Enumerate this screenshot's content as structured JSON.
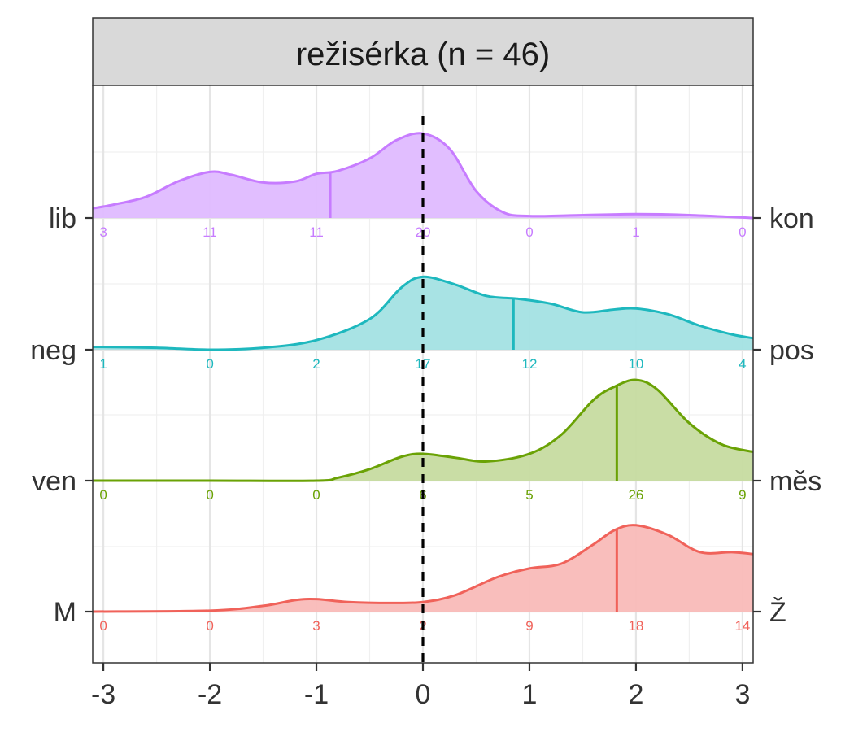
{
  "chart_data": {
    "type": "ridgeline-density",
    "panel_title": "režisérka (n = 46)",
    "x_ticks": [
      -3,
      -2,
      -1,
      0,
      1,
      2,
      3
    ],
    "x_range": [
      -3.1,
      3.1
    ],
    "reference_line_x": 0,
    "rows": [
      {
        "left_label": "lib",
        "right_label": "kon",
        "color": "#C77CFF",
        "fill": "#DFBAFF",
        "mean": -0.87,
        "counts": [
          3,
          11,
          11,
          20,
          0,
          1,
          0
        ],
        "density_x": [
          -3.1,
          -2.9,
          -2.6,
          -2.3,
          -2.0,
          -1.8,
          -1.5,
          -1.2,
          -1.0,
          -0.8,
          -0.5,
          -0.25,
          0.0,
          0.25,
          0.5,
          0.75,
          1.0,
          1.5,
          2.0,
          2.5,
          3.1
        ],
        "density_y": [
          0.1,
          0.14,
          0.22,
          0.38,
          0.48,
          0.45,
          0.37,
          0.38,
          0.46,
          0.49,
          0.62,
          0.81,
          0.88,
          0.72,
          0.28,
          0.06,
          0.02,
          0.03,
          0.04,
          0.03,
          0.0
        ]
      },
      {
        "left_label": "neg",
        "right_label": "pos",
        "color": "#1EB8BE",
        "fill": "#A3E1E3",
        "mean": 0.85,
        "counts": [
          1,
          0,
          2,
          17,
          12,
          10,
          4
        ],
        "density_x": [
          -3.1,
          -2.5,
          -2.0,
          -1.5,
          -1.0,
          -0.5,
          -0.2,
          0.0,
          0.3,
          0.6,
          0.9,
          1.2,
          1.5,
          1.8,
          2.0,
          2.3,
          2.6,
          2.9,
          3.1
        ],
        "density_y": [
          0.03,
          0.02,
          0.0,
          0.02,
          0.1,
          0.32,
          0.65,
          0.76,
          0.68,
          0.56,
          0.53,
          0.48,
          0.39,
          0.42,
          0.43,
          0.37,
          0.25,
          0.16,
          0.12
        ]
      },
      {
        "left_label": "ven",
        "right_label": "měs",
        "color": "#6AA205",
        "fill": "#C6DBA0",
        "mean": 1.82,
        "counts": [
          0,
          0,
          0,
          6,
          5,
          26,
          9
        ],
        "density_x": [
          -3.1,
          -2.0,
          -1.0,
          -0.8,
          -0.5,
          -0.2,
          0.0,
          0.3,
          0.6,
          1.0,
          1.3,
          1.6,
          1.8,
          2.0,
          2.2,
          2.5,
          2.8,
          3.1
        ],
        "density_y": [
          0.0,
          0.0,
          0.0,
          0.03,
          0.12,
          0.25,
          0.28,
          0.24,
          0.2,
          0.28,
          0.48,
          0.84,
          0.98,
          1.05,
          0.95,
          0.6,
          0.38,
          0.3
        ]
      },
      {
        "left_label": "M",
        "right_label": "Ž",
        "color": "#F0625A",
        "fill": "#F9BBB8",
        "mean": 1.82,
        "counts": [
          0,
          0,
          3,
          2,
          9,
          18,
          14
        ],
        "density_x": [
          -3.1,
          -2.0,
          -1.5,
          -1.2,
          -1.0,
          -0.7,
          -0.3,
          0.0,
          0.3,
          0.7,
          1.0,
          1.3,
          1.6,
          1.8,
          2.0,
          2.3,
          2.6,
          2.9,
          3.1
        ],
        "density_y": [
          0.0,
          0.01,
          0.06,
          0.12,
          0.13,
          0.1,
          0.09,
          0.1,
          0.17,
          0.36,
          0.45,
          0.5,
          0.7,
          0.85,
          0.9,
          0.8,
          0.62,
          0.62,
          0.6
        ]
      }
    ]
  }
}
